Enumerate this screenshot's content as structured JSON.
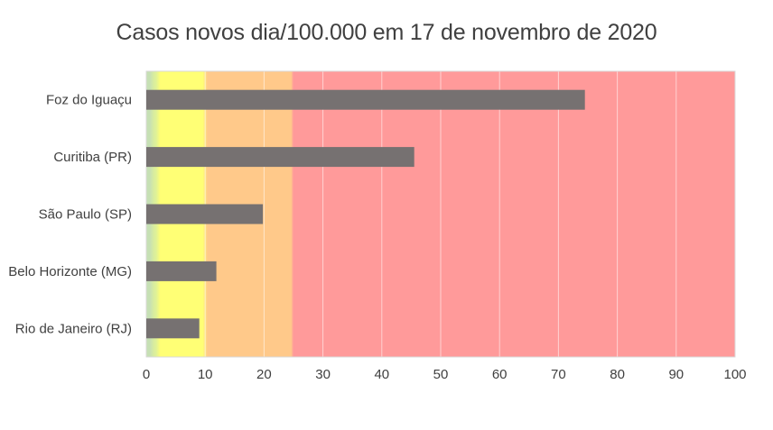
{
  "chart_data": {
    "type": "bar",
    "orientation": "horizontal",
    "title": "Casos novos dia/100.000 em 17 de novembro de 2020",
    "xlabel": "",
    "ylabel": "",
    "categories": [
      "Foz do Iguaçu",
      "Curitiba (PR)",
      "São Paulo (SP)",
      "Belo Horizonte (MG)",
      "Rio de Janeiro (RJ)"
    ],
    "values": [
      74.5,
      45.5,
      19.8,
      11.9,
      9.0
    ],
    "xlim": [
      0,
      100
    ],
    "xticks": [
      0,
      10,
      20,
      30,
      40,
      50,
      60,
      70,
      80,
      90,
      100
    ],
    "bar_color": "#767171",
    "grid": true,
    "background_bands": [
      {
        "from": 0,
        "to": 1,
        "color": "#c6e0b4"
      },
      {
        "from": 1,
        "to": 2,
        "color": "#dcef9a"
      },
      {
        "from": 2,
        "to": 10,
        "color": "#ffff75"
      },
      {
        "from": 10,
        "to": 25,
        "color": "#ffc98a"
      },
      {
        "from": 25,
        "to": 100,
        "color": "#ff9a9a"
      }
    ]
  }
}
